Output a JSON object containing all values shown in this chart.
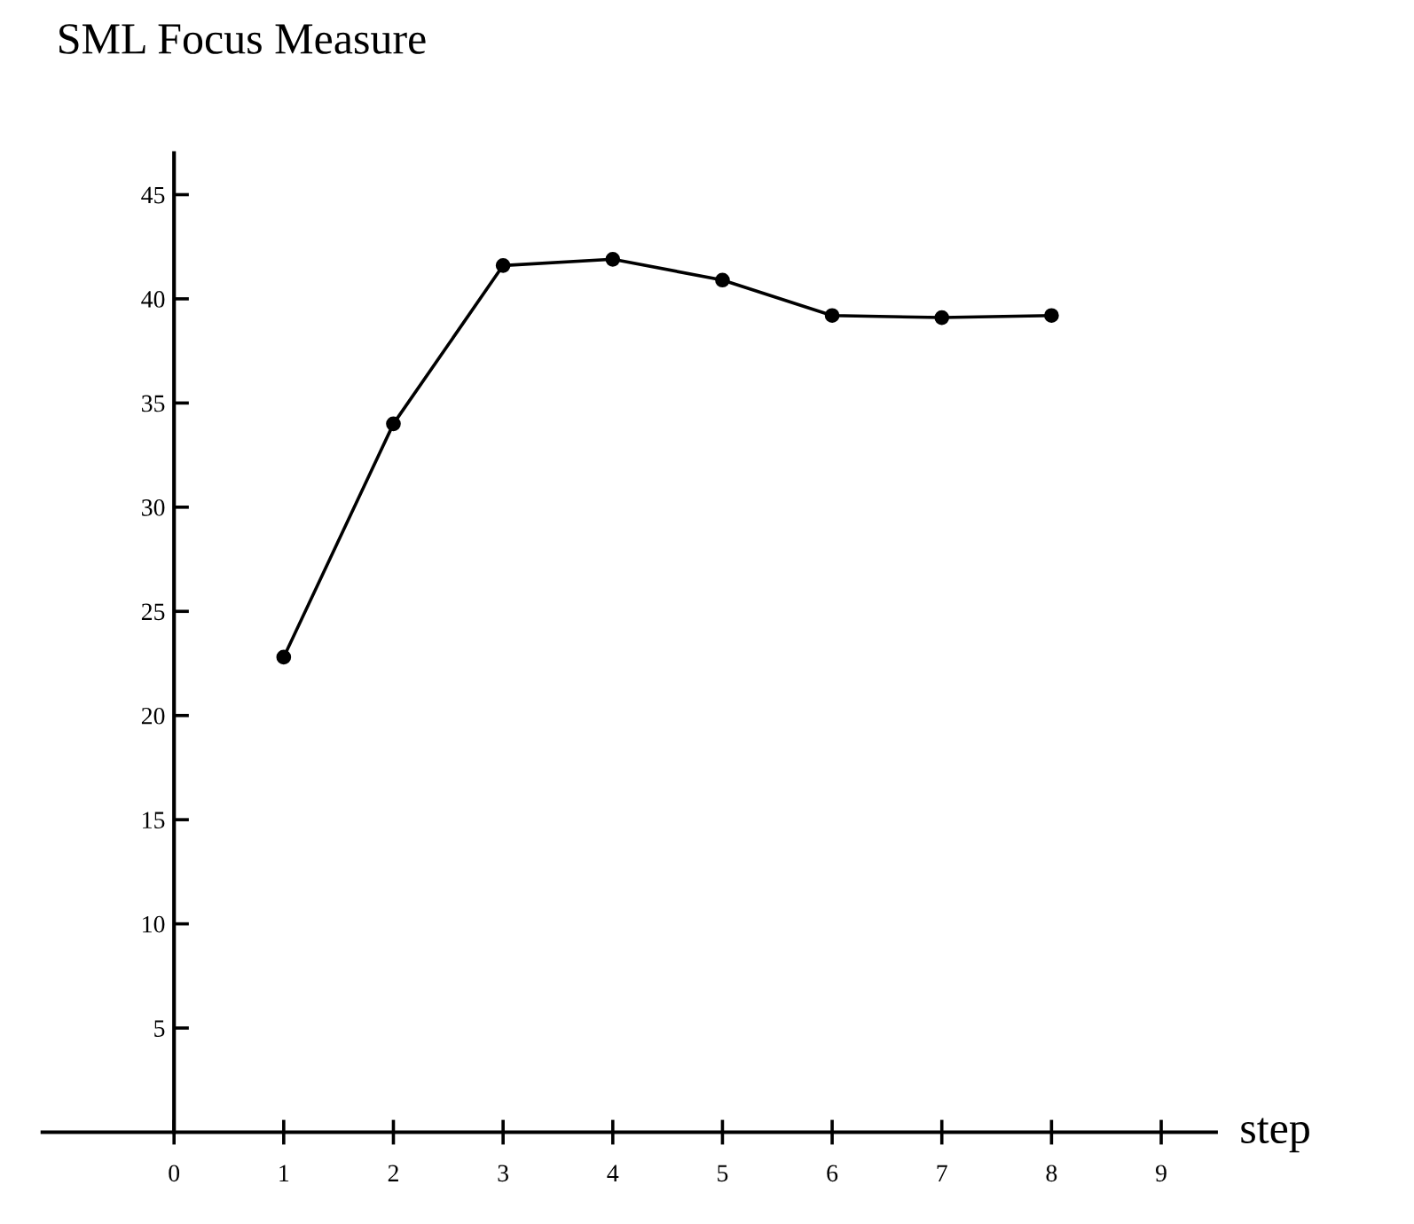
{
  "chart_data": {
    "type": "line",
    "title": "SML Focus Measure",
    "xlabel": "step",
    "x": [
      1,
      2,
      3,
      4,
      5,
      6,
      7,
      8
    ],
    "series": [
      {
        "color": "#000000",
        "values": [
          22.8,
          34,
          41.6,
          41.9,
          40.9,
          39.2,
          39.1,
          39.2
        ]
      }
    ],
    "xlim": [
      -1.2,
      9.5
    ],
    "ylim": [
      0,
      47
    ],
    "xticks": [
      0,
      1,
      2,
      3,
      4,
      5,
      6,
      7,
      8,
      9
    ],
    "yticks": [
      5,
      10,
      15,
      20,
      25,
      30,
      35,
      40,
      45
    ],
    "grid": false,
    "legend": false,
    "marker": "circle",
    "line_style": "solid"
  }
}
